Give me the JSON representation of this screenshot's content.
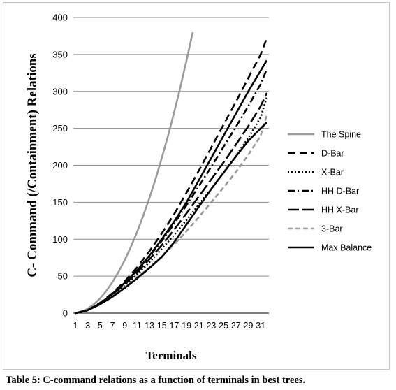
{
  "caption": "Table 5:  C-command relations as a function of terminals in best trees.",
  "chart_data": {
    "type": "line",
    "xlabel": "Terminals",
    "ylabel": "C- Command (/Containment) Relations",
    "ylim": [
      0,
      400
    ],
    "yticks": [
      0,
      50,
      100,
      150,
      200,
      250,
      300,
      350,
      400
    ],
    "xlim": [
      1,
      32
    ],
    "xtick_labels": [
      "1",
      "3",
      "5",
      "7",
      "9",
      "11",
      "13",
      "15",
      "17",
      "19",
      "21",
      "23",
      "25",
      "27",
      "29",
      "31"
    ],
    "grid": "horizontal",
    "legend_position": "right",
    "series": [
      {
        "name": "The Spine",
        "color": "#9a9a9a",
        "dash": "solid",
        "x": [
          1,
          2,
          3,
          4,
          5,
          6,
          7,
          8,
          9,
          10,
          11,
          12,
          13,
          14,
          15,
          16,
          17,
          18,
          19,
          20
        ],
        "values": [
          0,
          2,
          6,
          12,
          20,
          30,
          42,
          56,
          72,
          90,
          110,
          132,
          156,
          182,
          210,
          240,
          272,
          306,
          342,
          380
        ]
      },
      {
        "name": "D-Bar",
        "color": "#000000",
        "dash": "long",
        "x": [
          1,
          3,
          5,
          7,
          9,
          11,
          13,
          15,
          17,
          19,
          21,
          23,
          25,
          27,
          29,
          31,
          32
        ],
        "values": [
          0,
          4,
          14,
          27,
          43,
          62,
          84,
          108,
          134,
          163,
          193,
          224,
          255,
          286,
          318,
          350,
          372
        ]
      },
      {
        "name": "X-Bar",
        "color": "#000000",
        "dash": "dotted",
        "x": [
          1,
          3,
          5,
          7,
          9,
          11,
          13,
          15,
          17,
          19,
          21,
          23,
          25,
          27,
          29,
          31,
          32
        ],
        "values": [
          0,
          4,
          13,
          24,
          37,
          52,
          69,
          87,
          106,
          126,
          147,
          168,
          190,
          213,
          237,
          265,
          292
        ]
      },
      {
        "name": "HH D-Bar",
        "color": "#000000",
        "dash": "dashdot",
        "x": [
          1,
          3,
          5,
          7,
          9,
          11,
          13,
          15,
          17,
          19,
          21,
          23,
          25,
          27,
          29,
          31,
          32
        ],
        "values": [
          0,
          4,
          13,
          26,
          41,
          58,
          77,
          98,
          121,
          146,
          172,
          198,
          225,
          252,
          280,
          310,
          330
        ]
      },
      {
        "name": "HH X-Bar",
        "color": "#000000",
        "dash": "longdash",
        "x": [
          1,
          3,
          5,
          7,
          9,
          11,
          13,
          15,
          17,
          19,
          21,
          23,
          25,
          27,
          29,
          31,
          32
        ],
        "values": [
          0,
          4,
          13,
          25,
          39,
          55,
          73,
          92,
          113,
          135,
          158,
          181,
          204,
          228,
          253,
          280,
          298
        ]
      },
      {
        "name": "3-Bar",
        "color": "#9a9a9a",
        "dash": "medium",
        "x": [
          1,
          3,
          5,
          7,
          9,
          11,
          13,
          15,
          17,
          19,
          21,
          23,
          25,
          27,
          29,
          31,
          32
        ],
        "values": [
          0,
          4,
          12,
          23,
          35,
          48,
          62,
          77,
          93,
          111,
          130,
          150,
          170,
          191,
          214,
          240,
          268
        ]
      },
      {
        "name": "Max Balance",
        "color": "#000000",
        "dash": "solid",
        "x": [
          1,
          3,
          5,
          7,
          9,
          11,
          13,
          15,
          17,
          19,
          21,
          23,
          25,
          27,
          29,
          31,
          32
        ],
        "values": [
          0,
          4,
          12,
          22,
          34,
          47,
          61,
          76,
          96,
          120,
          144,
          168,
          190,
          212,
          233,
          250,
          258
        ]
      },
      {
        "name": "",
        "color": "#000000",
        "dash": "solid",
        "x": [
          1,
          3,
          5,
          7,
          9,
          11,
          13,
          15,
          17,
          19,
          21,
          23,
          25,
          27,
          29,
          31,
          32
        ],
        "values": [
          0,
          4,
          13,
          26,
          41,
          58,
          78,
          100,
          124,
          150,
          180,
          210,
          240,
          270,
          300,
          328,
          342
        ]
      }
    ]
  }
}
